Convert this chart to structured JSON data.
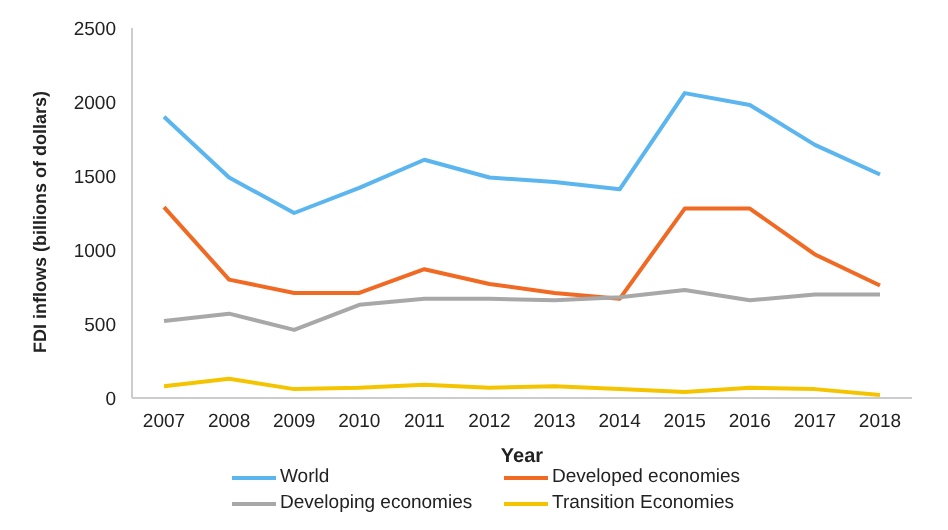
{
  "chart_data": {
    "type": "line",
    "xlabel": "Year",
    "ylabel": "FDI inflows (billions of dollars)",
    "categories": [
      "2007",
      "2008",
      "2009",
      "2010",
      "2011",
      "2012",
      "2013",
      "2014",
      "2015",
      "2016",
      "2017",
      "2018"
    ],
    "series": [
      {
        "name": "World",
        "color": "#5bb5ee",
        "values": [
          1900,
          1490,
          1250,
          1420,
          1610,
          1490,
          1460,
          1410,
          2060,
          1980,
          1710,
          1510
        ]
      },
      {
        "name": "Developed economies",
        "color": "#f06a24",
        "values": [
          1290,
          800,
          710,
          710,
          870,
          770,
          710,
          670,
          1280,
          1280,
          970,
          760
        ]
      },
      {
        "name": "Developing economies",
        "color": "#a8a8a8",
        "values": [
          520,
          570,
          460,
          630,
          670,
          670,
          660,
          680,
          730,
          660,
          700,
          700
        ]
      },
      {
        "name": "Transition Economies",
        "color": "#f5c400",
        "values": [
          80,
          130,
          60,
          70,
          90,
          70,
          80,
          60,
          40,
          70,
          60,
          20
        ]
      }
    ],
    "ylim": [
      0,
      2500
    ],
    "yticks": [
      0,
      500,
      1000,
      1500,
      2000,
      2500
    ],
    "grid": false,
    "legend": "bottom",
    "marker": "none",
    "line_style": "solid"
  }
}
